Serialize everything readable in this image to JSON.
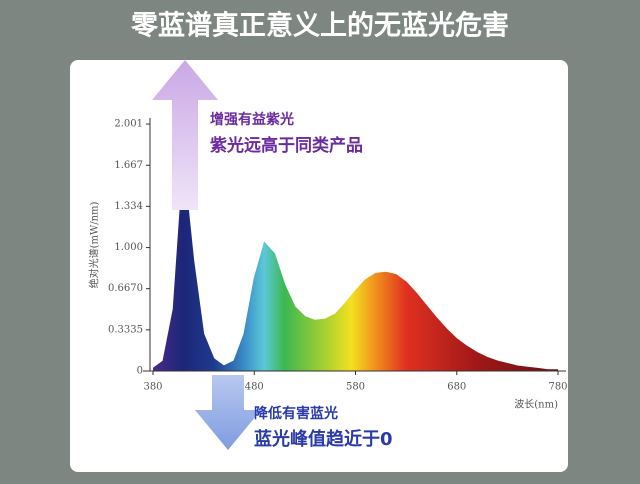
{
  "chart_data": {
    "type": "area",
    "title": "零蓝谱真正意义上的无蓝光危害",
    "x_label": "波长(nm)",
    "y_label": "绝对光谱(mW/nm)",
    "x": [
      380,
      390,
      400,
      410,
      420,
      430,
      440,
      450,
      460,
      470,
      480,
      490,
      500,
      510,
      520,
      530,
      540,
      550,
      560,
      570,
      580,
      590,
      600,
      610,
      620,
      630,
      640,
      650,
      660,
      670,
      680,
      690,
      700,
      710,
      720,
      730,
      740,
      750,
      760,
      770,
      780
    ],
    "values": [
      0.02,
      0.08,
      0.5,
      1.69,
      0.9,
      0.3,
      0.1,
      0.04,
      0.08,
      0.3,
      0.75,
      1.04,
      0.95,
      0.7,
      0.52,
      0.44,
      0.41,
      0.42,
      0.46,
      0.55,
      0.65,
      0.74,
      0.79,
      0.8,
      0.78,
      0.72,
      0.63,
      0.53,
      0.43,
      0.34,
      0.26,
      0.2,
      0.15,
      0.11,
      0.08,
      0.06,
      0.04,
      0.03,
      0.02,
      0.01,
      0.01
    ],
    "xlim": [
      380,
      780
    ],
    "xticks": [
      380,
      480,
      580,
      680,
      780
    ],
    "ylim": [
      0,
      2.05
    ],
    "yticks": [
      0,
      0.3335,
      {
        "value": 0.667,
        "label": "0.6670"
      },
      {
        "value": 1,
        "label": "1.000"
      },
      1.334,
      1.667,
      2.001
    ],
    "annotations": [
      "增强有益紫光",
      "紫光远高于同类产品",
      "降低有害蓝光",
      "蓝光峰值趋近于0"
    ]
  }
}
